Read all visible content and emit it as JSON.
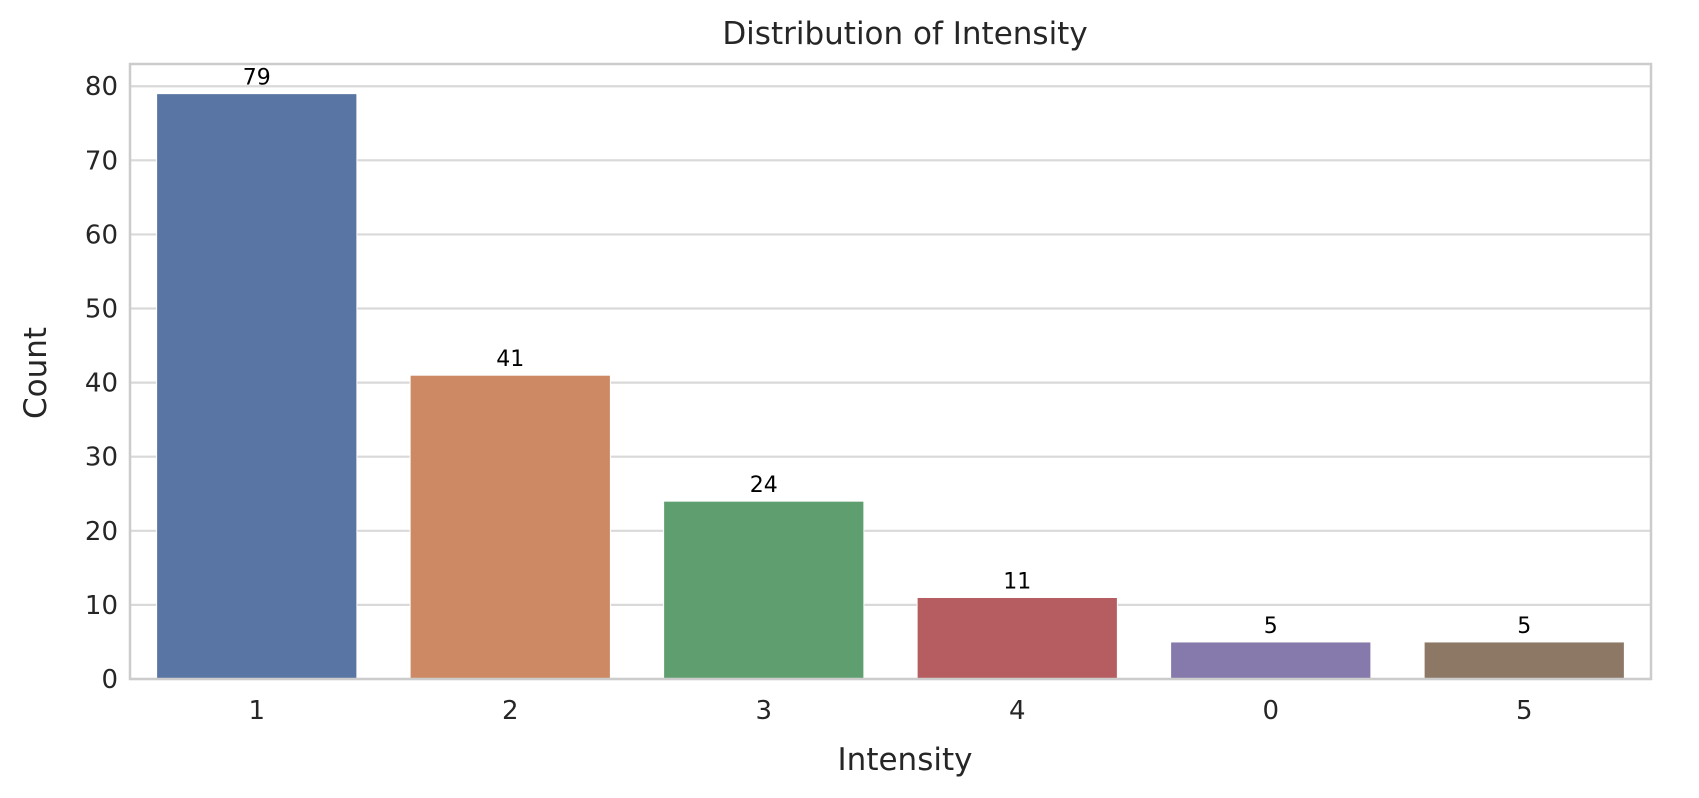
{
  "chart_data": {
    "type": "bar",
    "title": "Distribution of Intensity",
    "xlabel": "Intensity",
    "ylabel": "Count",
    "categories": [
      "1",
      "2",
      "3",
      "4",
      "0",
      "5"
    ],
    "values": [
      79,
      41,
      24,
      11,
      5,
      5
    ],
    "colors": [
      "#5975a4",
      "#cc8963",
      "#5f9e6e",
      "#b55d60",
      "#857aab",
      "#8d7866"
    ],
    "ylim": [
      0,
      83
    ],
    "yticks": [
      0,
      10,
      20,
      30,
      40,
      50,
      60,
      70,
      80
    ],
    "grid": true,
    "data_labels": true
  }
}
